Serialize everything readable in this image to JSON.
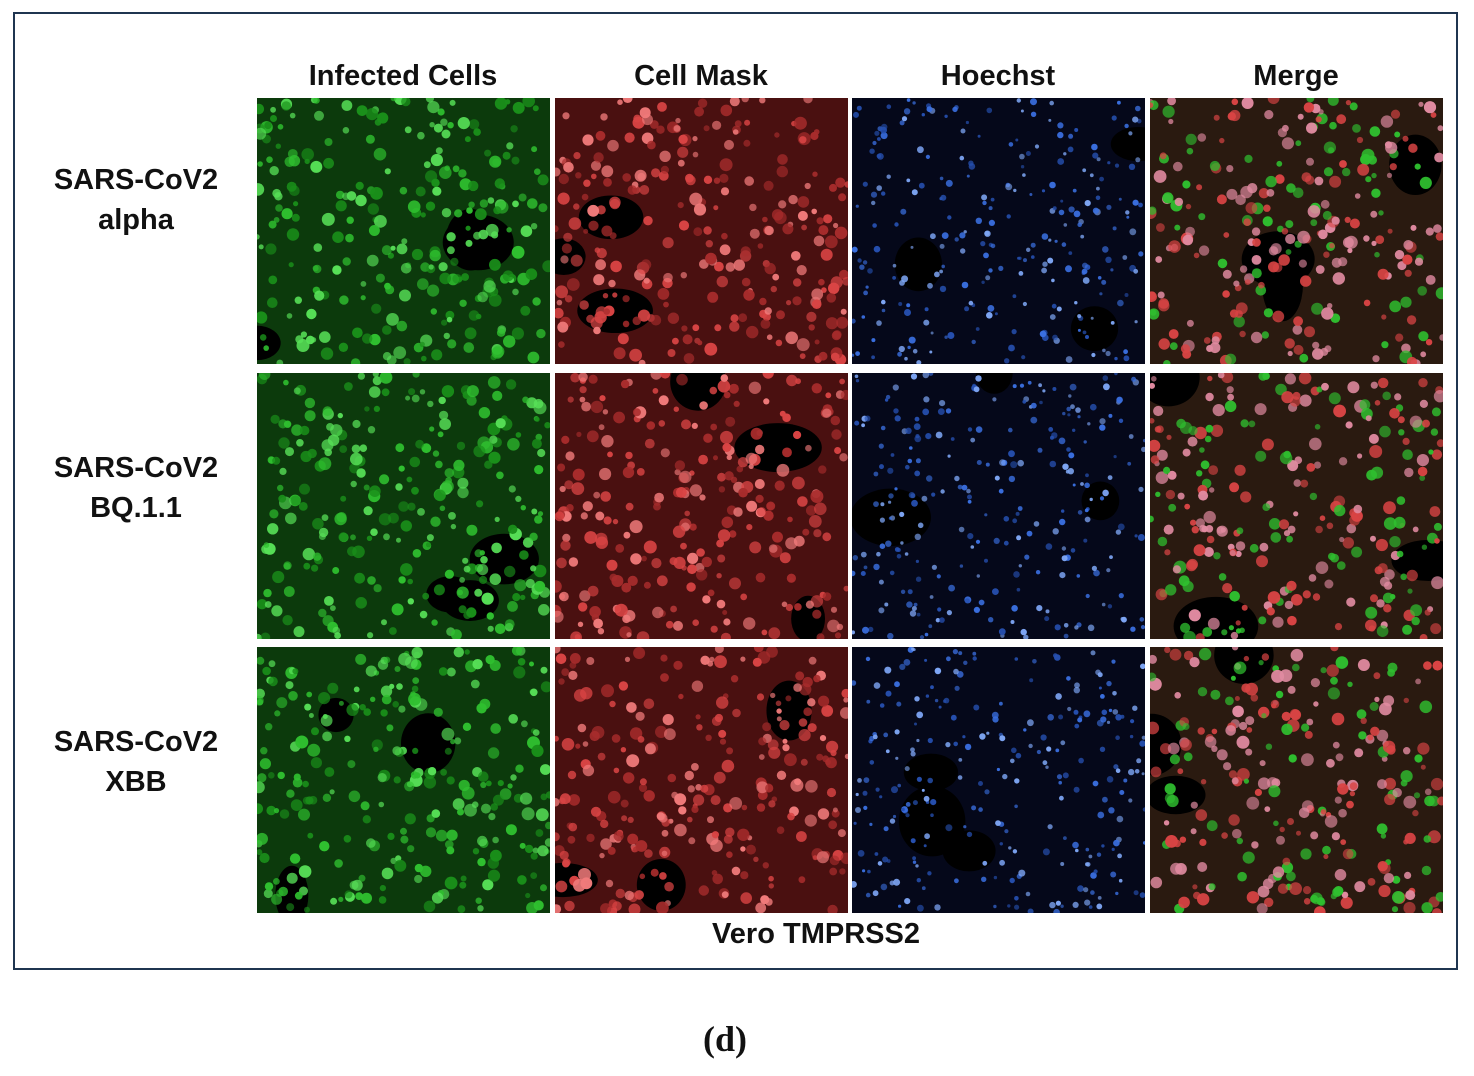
{
  "columns": [
    "Infected Cells",
    "Cell Mask",
    "Hoechst",
    "Merge"
  ],
  "rows": [
    {
      "name": "SARS-CoV2",
      "variant": "alpha"
    },
    {
      "name": "SARS-CoV2",
      "variant": "BQ.1.1"
    },
    {
      "name": "SARS-CoV2",
      "variant": "XBB"
    }
  ],
  "cell_line": "Vero TMPRSS2",
  "caption": "(d)"
}
